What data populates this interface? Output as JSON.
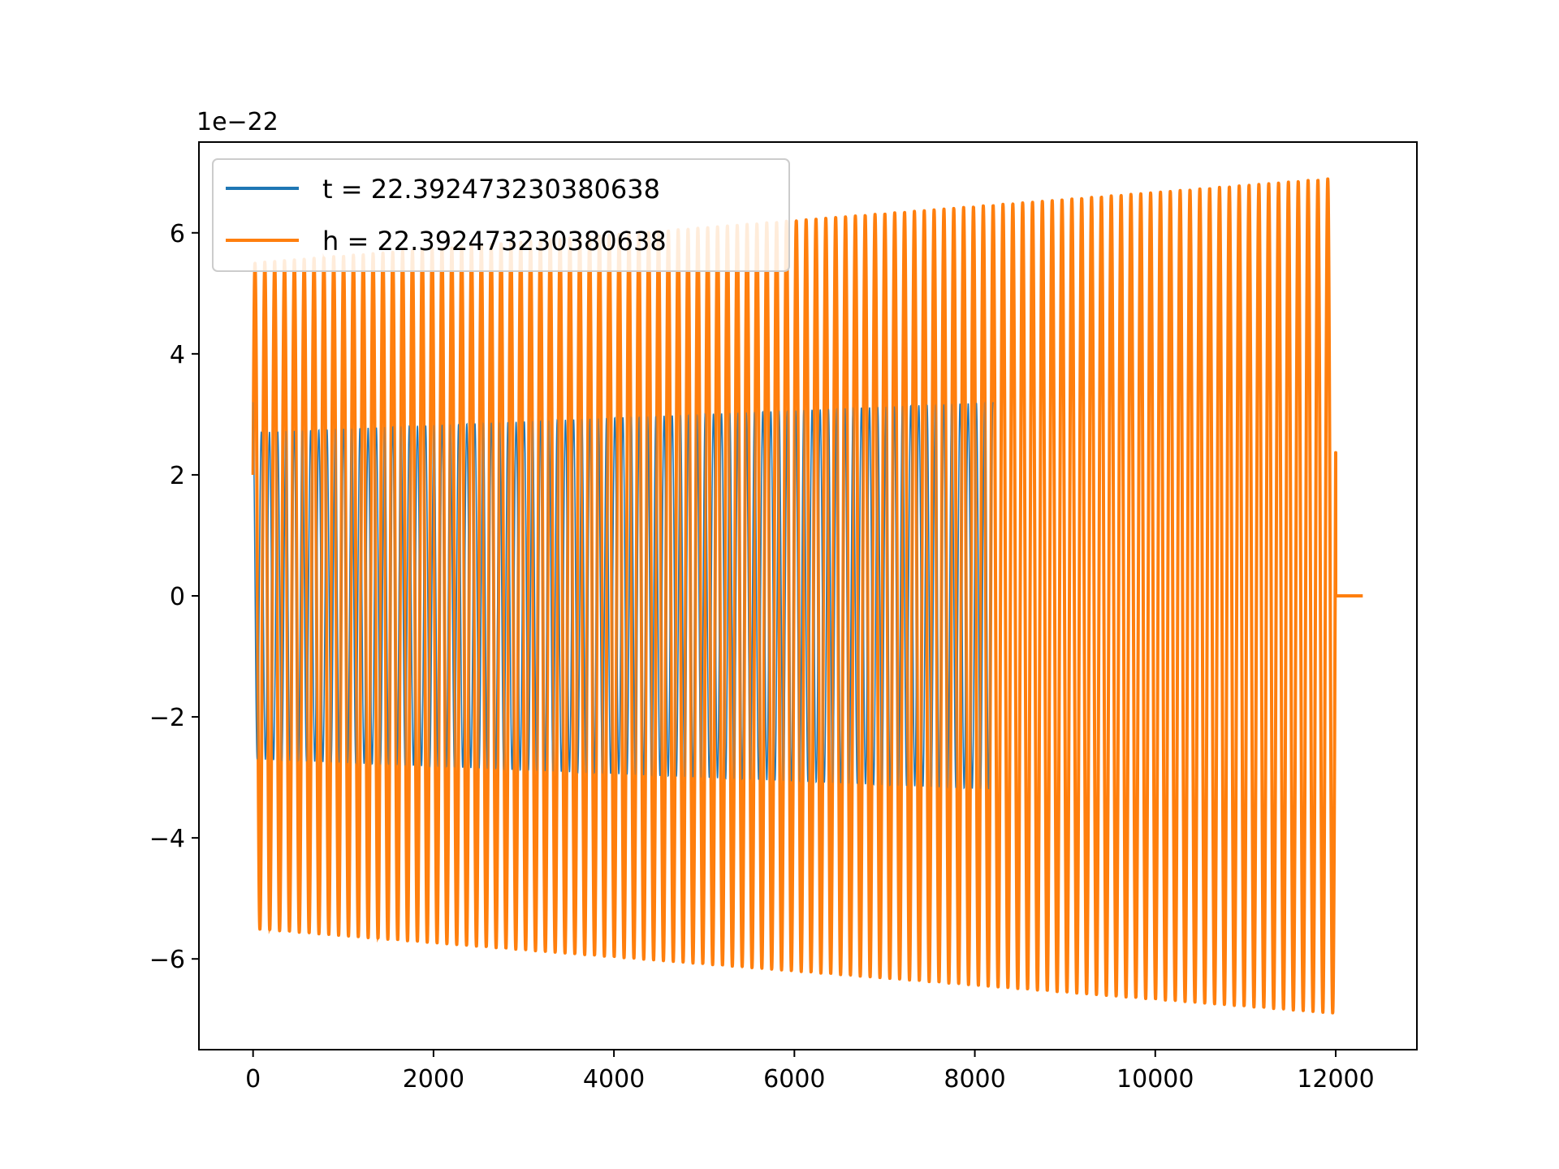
{
  "chart_data": {
    "type": "line",
    "title": "",
    "xlabel": "",
    "ylabel": "",
    "offset_text": "1e−22",
    "xlim": [
      -600,
      12900
    ],
    "ylim": [
      -7.5,
      7.5
    ],
    "x_ticks": [
      0,
      2000,
      4000,
      6000,
      8000,
      10000,
      12000
    ],
    "x_tick_labels": [
      "0",
      "2000",
      "4000",
      "6000",
      "8000",
      "10000",
      "12000"
    ],
    "y_ticks": [
      -6,
      -4,
      -2,
      0,
      2,
      4,
      6
    ],
    "y_tick_labels": [
      "−6",
      "−4",
      "−2",
      "0",
      "2",
      "4",
      "6"
    ],
    "grid": false,
    "legend_position": "upper-left",
    "series": [
      {
        "name": "t = 22.392473230380638",
        "color": "#1f77b4",
        "x_range": [
          0,
          8200
        ],
        "amplitude_start": 2.7,
        "amplitude_end": 3.2,
        "initial_value": 3.2,
        "approx_cycles": 90,
        "note_points": "oscillating waveform, amplitude in units of 1e-22"
      },
      {
        "name": "h = 22.392473230380638",
        "color": "#ff7f0e",
        "x_range": [
          0,
          12300
        ],
        "amplitude_start": 5.5,
        "amplitude_end": 6.9,
        "oscillation_end": 12000,
        "approx_cycles": 110,
        "tail_value": 0
      }
    ]
  }
}
